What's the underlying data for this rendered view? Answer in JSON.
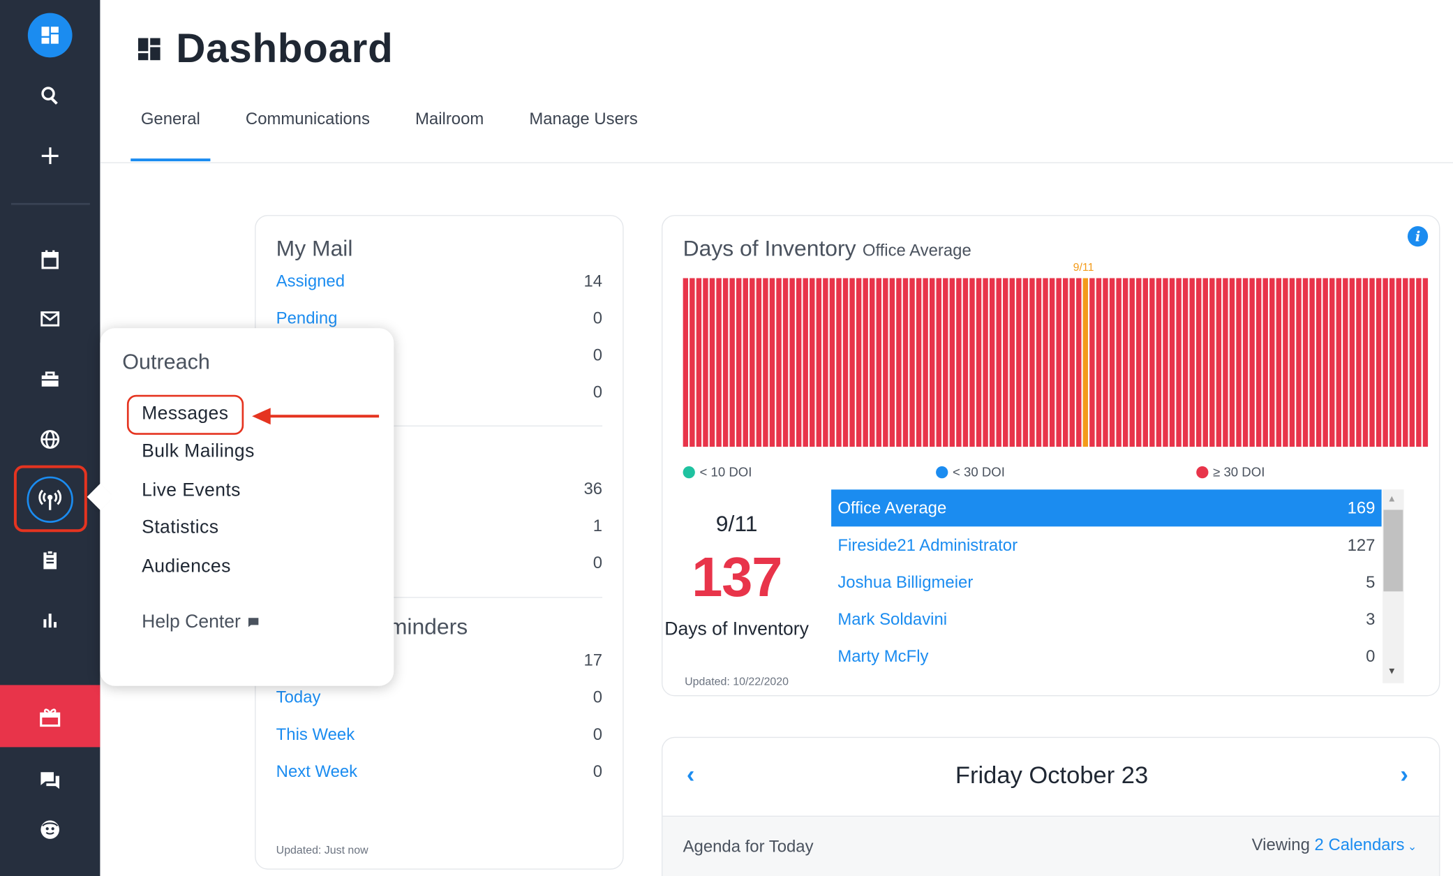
{
  "page": {
    "title": "Dashboard"
  },
  "tabs": [
    {
      "label": "General",
      "active": true
    },
    {
      "label": "Communications",
      "active": false
    },
    {
      "label": "Mailroom",
      "active": false
    },
    {
      "label": "Manage Users",
      "active": false
    }
  ],
  "sidebar": {
    "icons": [
      "dashboard-icon",
      "search-icon",
      "plus-icon",
      "calendar-icon",
      "mail-icon",
      "briefcase-icon",
      "globe-icon",
      "broadcast-icon",
      "clipboard-icon",
      "bar-chart-icon",
      "gift-icon",
      "chat-icon",
      "smiley-icon"
    ],
    "accent": "#1b8cf0",
    "highlight": "#e8344a"
  },
  "my_mail": {
    "title": "My Mail",
    "rows": [
      {
        "label": "Assigned",
        "value": "14"
      },
      {
        "label": "Pending",
        "value": "0"
      },
      {
        "label": "",
        "value": "0"
      },
      {
        "label": "",
        "value": "0"
      }
    ],
    "rows2": [
      {
        "label": "",
        "value": "36"
      },
      {
        "label": "",
        "value": "1"
      },
      {
        "label": "",
        "value": "0"
      }
    ],
    "reminders_title": "eminders",
    "rows3": [
      {
        "label": "",
        "value": "17"
      },
      {
        "label": "Today",
        "value": "0"
      },
      {
        "label": "This Week",
        "value": "0"
      },
      {
        "label": "Next Week",
        "value": "0"
      }
    ],
    "updated": "Updated: Just now"
  },
  "doi": {
    "title": "Days of Inventory",
    "subtitle": "Office Average",
    "marker_label": "9/11",
    "legend": [
      {
        "label": "< 10 DOI",
        "color": "#1fc2a0"
      },
      {
        "label": "< 30 DOI",
        "color": "#1b8cf0"
      },
      {
        "label": "≥ 30 DOI",
        "color": "#e8344a"
      }
    ],
    "date": "9/11",
    "value": "137",
    "label": "Days of Inventory",
    "updated": "Updated: 10/22/2020",
    "list": [
      {
        "name": "Office Average",
        "value": "169",
        "selected": true
      },
      {
        "name": "Fireside21 Administrator",
        "value": "127",
        "selected": false
      },
      {
        "name": "Joshua Billigmeier",
        "value": "5",
        "selected": false
      },
      {
        "name": "Mark Soldavini",
        "value": "3",
        "selected": false
      },
      {
        "name": "Marty McFly",
        "value": "0",
        "selected": false
      }
    ]
  },
  "calendar": {
    "date": "Friday October 23",
    "agenda": "Agenda for Today",
    "viewing_prefix": "Viewing",
    "viewing_link": "2 Calendars"
  },
  "popover": {
    "title": "Outreach",
    "items": [
      "Messages",
      "Bulk Mailings",
      "Live Events",
      "Statistics",
      "Audiences"
    ],
    "help": "Help Center"
  }
}
